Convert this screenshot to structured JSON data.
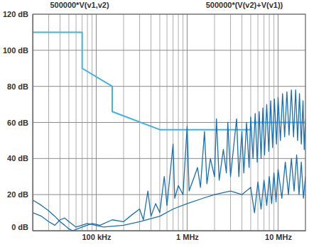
{
  "chart_data": {
    "type": "line",
    "log": "x",
    "grid": true,
    "legend": "top",
    "xlim": [
      20000,
      20000000
    ],
    "xticks": [
      {
        "value": 100000,
        "label": "100 kHz"
      },
      {
        "value": 1000000,
        "label": "1 MHz"
      },
      {
        "value": 10000000,
        "label": "10 MHz"
      }
    ],
    "ylim": [
      0,
      120
    ],
    "yticks": [
      {
        "value": 0,
        "label": "0 dB"
      },
      {
        "value": 20,
        "label": "20 dB"
      },
      {
        "value": 40,
        "label": "40 dB"
      },
      {
        "value": 60,
        "label": "60 dB"
      },
      {
        "value": 80,
        "label": "80 dB"
      },
      {
        "value": 100,
        "label": "100 dB"
      },
      {
        "value": 120,
        "label": "120 dB"
      }
    ],
    "series": [
      {
        "color": "#3db3e3",
        "x": [
          20000,
          70000,
          70000,
          150000,
          150000,
          500000,
          5000000,
          5000000,
          20000000
        ],
        "values": [
          110,
          110,
          90,
          80,
          66,
          56,
          56,
          60,
          60
        ]
      },
      {
        "name": "500000*V(v1,v2)",
        "color": "#1b6fb3",
        "x": [
          20000,
          25000,
          30000,
          35000,
          40000,
          45000,
          50000,
          55000,
          70000,
          90000,
          110000,
          150000,
          200000,
          250000,
          300000,
          330000,
          370000,
          400000,
          450000,
          500000,
          560000,
          600000,
          700000,
          730000,
          800000,
          900000,
          1000000,
          1050000,
          1200000,
          1300000,
          1400000,
          1550000,
          1650000,
          1800000,
          2000000,
          2100000,
          2250000,
          2500000,
          2700000,
          2800000,
          3000000,
          3300000,
          3500000,
          3700000,
          4000000,
          4200000,
          4500000,
          4800000,
          5000000,
          5300000,
          5600000,
          5900000,
          6200000,
          6500000,
          6800000,
          7100000,
          7500000,
          7900000,
          8300000,
          8700000,
          9100000,
          9600000,
          10000000,
          10600000,
          11200000,
          11800000,
          12500000,
          13200000,
          14000000,
          14800000,
          15600000,
          16400000,
          17200000,
          18000000,
          18800000,
          19400000,
          20000000
        ],
        "values": [
          17,
          14,
          11,
          8,
          5,
          3,
          1,
          0,
          2,
          4,
          3,
          6,
          5,
          9,
          12,
          6,
          22,
          8,
          15,
          10,
          30,
          14,
          48,
          18,
          25,
          20,
          58,
          22,
          30,
          35,
          24,
          55,
          26,
          40,
          30,
          62,
          28,
          45,
          32,
          60,
          30,
          50,
          62,
          30,
          55,
          32,
          60,
          35,
          63,
          40,
          65,
          38,
          66,
          40,
          68,
          42,
          70,
          44,
          72,
          46,
          73,
          48,
          74,
          50,
          76,
          52,
          77,
          53,
          78,
          52,
          78,
          50,
          76,
          48,
          72,
          45,
          62
        ]
      },
      {
        "name": "500000*(V(v2)+V(v1))",
        "color": "#1b6fb3",
        "x": [
          20000,
          25000,
          30000,
          35000,
          40000,
          45000,
          50000,
          60000,
          80000,
          120000,
          200000,
          300000,
          500000,
          700000,
          1000000,
          1500000,
          2000000,
          3000000,
          4000000,
          5000000,
          5500000,
          6000000,
          6500000,
          7000000,
          7500000,
          8000000,
          8500000,
          9000000,
          9500000,
          10000000,
          11000000,
          12000000,
          13000000,
          14000000,
          15000000,
          16000000,
          17000000,
          18000000,
          19000000,
          20000000
        ],
        "values": [
          10,
          8,
          5,
          3,
          6,
          7,
          5,
          2,
          4,
          2,
          3,
          5,
          8,
          12,
          15,
          18,
          20,
          22,
          20,
          24,
          10,
          27,
          12,
          28,
          14,
          30,
          15,
          32,
          16,
          34,
          18,
          38,
          20,
          40,
          22,
          42,
          20,
          38,
          18,
          30
        ]
      }
    ]
  }
}
